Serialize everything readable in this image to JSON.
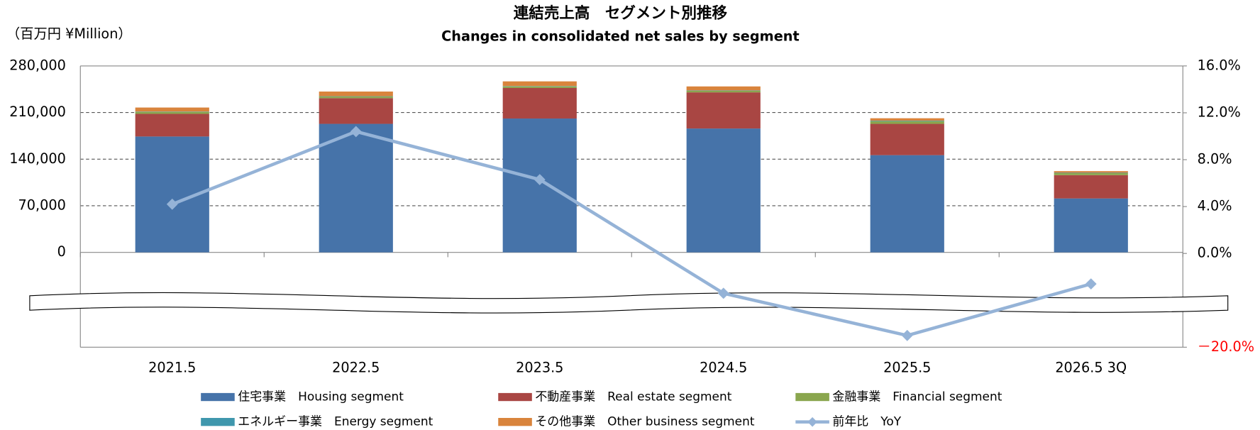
{
  "chart_data": {
    "type": "stacked-bar-line",
    "title": "連結売上高　セグメント別推移",
    "subtitle": "Changes in consolidated net sales by segment",
    "y_label": "（百万円 ¥Million）",
    "categories": [
      "2021.5",
      "2022.5",
      "2023.5",
      "2024.5",
      "2025.5",
      "2026.5 3Q"
    ],
    "series": [
      {
        "name": "住宅事業　Housing segment",
        "color": "#4673a9",
        "values": [
          174000,
          193000,
          201000,
          186000,
          146000,
          81000
        ]
      },
      {
        "name": "不動産事業　Real estate segment",
        "color": "#a94643",
        "values": [
          34000,
          38600,
          45900,
          54300,
          47000,
          35000
        ]
      },
      {
        "name": "金融事業　Financial segment",
        "color": "#8aa64e",
        "values": [
          3000,
          2400,
          2400,
          2400,
          4000,
          3000
        ]
      },
      {
        "name": "エネルギー事業　Energy segment",
        "color": "#3f97ad",
        "values": [
          500,
          500,
          500,
          500,
          800,
          600
        ]
      },
      {
        "name": "その他事業　Other business segment",
        "color": "#d9843c",
        "values": [
          6000,
          7000,
          7000,
          6000,
          3600,
          2400
        ]
      },
      {
        "name": "前年比　YoY",
        "color": "#95b3d7",
        "axis": "y2",
        "type": "line",
        "values": [
          4.2,
          10.4,
          6.3,
          -3.4,
          -19.0,
          -2.6
        ]
      }
    ],
    "ylim": [
      0,
      280000
    ],
    "yticks": [
      0,
      {
        "value": 70000,
        "label": "70,000"
      },
      {
        "value": 140000,
        "label": "140,000"
      },
      {
        "value": 210000,
        "label": "210,000"
      },
      {
        "value": 280000,
        "label": "280,000"
      }
    ],
    "y2lim": [
      -20,
      16
    ],
    "y2_break": [
      -4,
      -16
    ],
    "y2ticks": [
      {
        "value": -20,
        "label": "－20.0%",
        "color": "#ff0000"
      },
      {
        "value": 0,
        "label": "0.0%"
      },
      {
        "value": 4,
        "label": "4.0%"
      },
      {
        "value": 8,
        "label": "8.0%"
      },
      {
        "value": 12,
        "label": "12.0%"
      },
      {
        "value": 16,
        "label": "16.0%"
      }
    ],
    "grid": true
  }
}
